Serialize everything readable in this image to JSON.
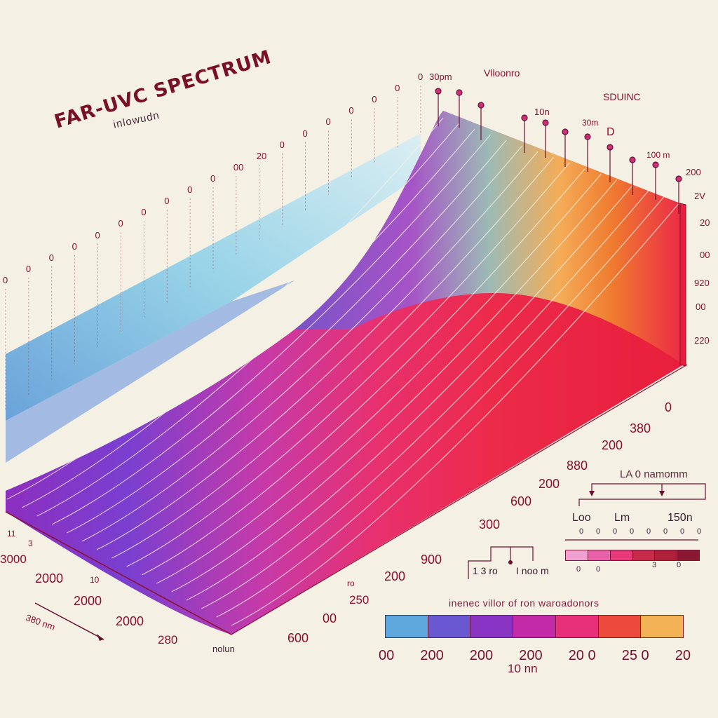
{
  "title": "FAR-UVC SPECTRUM",
  "subtitle": "inlowudn",
  "colors": {
    "background": "#f5f0e4",
    "ink": "#7a1030",
    "spectrum": [
      "#5fb4e0",
      "#6a4fd0",
      "#8c2fc0",
      "#e0308c",
      "#ec2a4a",
      "#f0892c",
      "#f6c45a"
    ]
  },
  "left_axis_labels": [
    "0",
    "0",
    "0",
    "0",
    "0",
    "0",
    "0",
    "0",
    "0",
    "0",
    "00",
    "20",
    "0",
    "0",
    "0",
    "0",
    "0",
    "0",
    "0"
  ],
  "top_labels": [
    "30pm",
    "Vlloonro",
    "10n",
    "30m",
    "D",
    "SDUINC",
    "100 m",
    "200"
  ],
  "right_axis_labels": [
    "2V",
    "20",
    "00",
    "920",
    "00",
    "220"
  ],
  "bottom_left_labels": [
    "3000",
    "2000",
    "2000",
    "2000",
    "280",
    "11",
    "3",
    "10"
  ],
  "bottom_mid_labels": [
    "ro",
    "250",
    "00",
    "600",
    "200",
    "900",
    "300",
    "600",
    "200",
    "880",
    "200",
    "380",
    "0"
  ],
  "axis_arrow_label": "380 nm",
  "axis_unit_label": "nolun",
  "inset": {
    "title": "LA 0 namomm",
    "tick_labels": [
      "Loo",
      "Lm",
      "150n"
    ],
    "scale_labels": [
      "0",
      "0",
      "0",
      "0",
      "0",
      "0",
      "0",
      "0"
    ],
    "bar_labels": [
      "0",
      "0",
      "3",
      "0"
    ],
    "lower_labels": [
      "1 3 ro",
      "I noo m"
    ]
  },
  "legend": {
    "title": "inenec villor of ron waroadonors",
    "tick_labels": [
      "00",
      "200",
      "200",
      "200",
      "20 0",
      "25 0",
      "20"
    ],
    "unit": "10 nn",
    "colors": [
      "#5fa8dd",
      "#6a58d0",
      "#8a34c4",
      "#c22aa8",
      "#e8307a",
      "#ec4a3c",
      "#f4b256"
    ]
  }
}
